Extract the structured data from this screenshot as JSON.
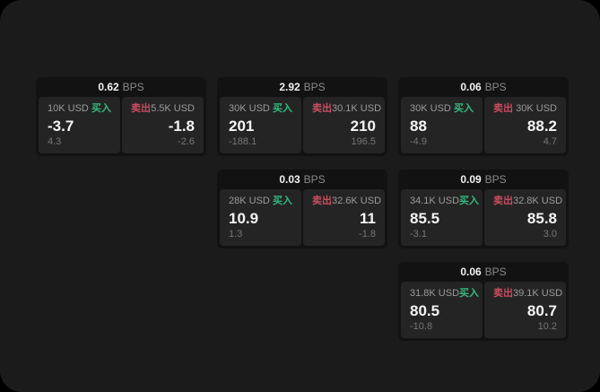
{
  "colors": {
    "page_background": "#1b1b1c",
    "card_background": "#121212",
    "panel_background": "#242425",
    "text_primary": "#f5f5f5",
    "text_secondary": "#9b9b9b",
    "text_tertiary": "#767677",
    "buy_green": "#35b97c",
    "sell_red": "#c84d5e"
  },
  "labels": {
    "bps": "BPS",
    "buy": "买入",
    "sell": "卖出"
  },
  "cards": [
    {
      "bps": "0.62",
      "buy": {
        "size": "10K USD",
        "value": "-3.7",
        "delta": "4.3"
      },
      "sell": {
        "size": "5.5K USD",
        "value": "-1.8",
        "delta": "-2.6"
      }
    },
    {
      "bps": "2.92",
      "buy": {
        "size": "30K USD",
        "value": "201",
        "delta": "-188.1"
      },
      "sell": {
        "size": "30.1K USD",
        "value": "210",
        "delta": "196.5"
      }
    },
    {
      "bps": "0.06",
      "buy": {
        "size": "30K USD",
        "value": "88",
        "delta": "-4.9"
      },
      "sell": {
        "size": "30K USD",
        "value": "88.2",
        "delta": "4.7"
      }
    },
    {
      "bps": "0.03",
      "buy": {
        "size": "28K USD",
        "value": "10.9",
        "delta": "1.3"
      },
      "sell": {
        "size": "32.6K USD",
        "value": "11",
        "delta": "-1.8"
      }
    },
    {
      "bps": "0.09",
      "buy": {
        "size": "34.1K USD",
        "value": "85.5",
        "delta": "-3.1"
      },
      "sell": {
        "size": "32.8K USD",
        "value": "85.8",
        "delta": "3.0"
      }
    },
    {
      "bps": "0.06",
      "buy": {
        "size": "31.8K USD",
        "value": "80.5",
        "delta": "-10.8"
      },
      "sell": {
        "size": "39.1K USD",
        "value": "80.7",
        "delta": "10.2"
      }
    }
  ]
}
